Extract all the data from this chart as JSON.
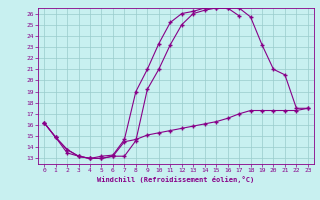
{
  "xlabel": "Windchill (Refroidissement éolien,°C)",
  "bg_color": "#c8f0f0",
  "line_color": "#880088",
  "grid_color": "#99cccc",
  "xlim": [
    -0.5,
    23.5
  ],
  "ylim": [
    12.5,
    26.5
  ],
  "xticks": [
    0,
    1,
    2,
    3,
    4,
    5,
    6,
    7,
    8,
    9,
    10,
    11,
    12,
    13,
    14,
    15,
    16,
    17,
    18,
    19,
    20,
    21,
    22,
    23
  ],
  "yticks": [
    13,
    14,
    15,
    16,
    17,
    18,
    19,
    20,
    21,
    22,
    23,
    24,
    25,
    26
  ],
  "line1_x": [
    0,
    1,
    2,
    3,
    4,
    5,
    6,
    7,
    8,
    9,
    10,
    11,
    12,
    13,
    14,
    15,
    16,
    17,
    18,
    19,
    20,
    21,
    22,
    23
  ],
  "line1_y": [
    16.2,
    14.9,
    13.8,
    13.2,
    13.0,
    13.0,
    13.2,
    13.2,
    14.6,
    19.2,
    21.0,
    23.2,
    25.0,
    26.0,
    26.3,
    26.5,
    26.5,
    26.5,
    25.7,
    23.2,
    21.0,
    20.5,
    17.5,
    17.5
  ],
  "line2_x": [
    0,
    1,
    2,
    3,
    4,
    5,
    6,
    7,
    8,
    9,
    10,
    11,
    12,
    13,
    14,
    15,
    16,
    17
  ],
  "line2_y": [
    16.2,
    14.9,
    13.5,
    13.2,
    13.0,
    13.2,
    13.3,
    14.7,
    19.0,
    21.0,
    23.3,
    25.2,
    26.0,
    26.2,
    26.5,
    26.5,
    26.5,
    25.8
  ],
  "line3_x": [
    0,
    1,
    2,
    3,
    4,
    5,
    6,
    7,
    8,
    9,
    10,
    11,
    12,
    13,
    14,
    15,
    16,
    17,
    18,
    19,
    20,
    21,
    22,
    23
  ],
  "line3_y": [
    16.2,
    14.9,
    13.8,
    13.2,
    13.0,
    13.0,
    13.2,
    14.5,
    14.7,
    15.1,
    15.3,
    15.5,
    15.7,
    15.9,
    16.1,
    16.3,
    16.6,
    17.0,
    17.3,
    17.3,
    17.3,
    17.3,
    17.3,
    17.5
  ]
}
